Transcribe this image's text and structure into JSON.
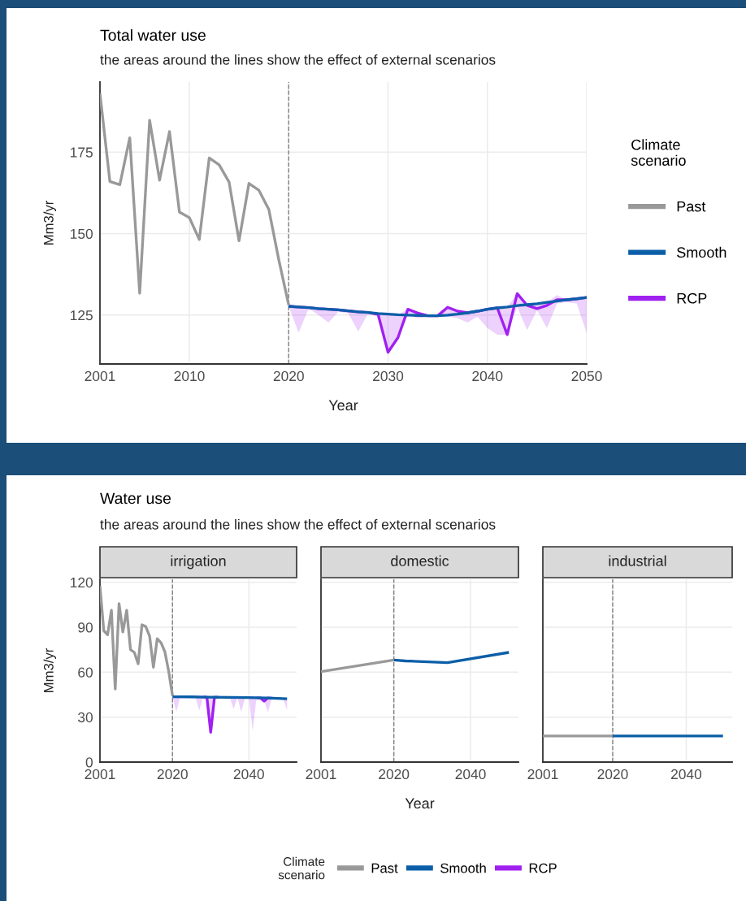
{
  "chart_data": [
    {
      "type": "line",
      "title": "Total water use",
      "subtitle": "the areas around the lines show the effect of external scenarios",
      "xlabel": "Year",
      "ylabel": "Mm3/yr",
      "legend_title": "Climate\nscenario",
      "legend": "right",
      "grid": true,
      "xlim": [
        2001,
        2050
      ],
      "xticks": [
        2001,
        2010,
        2020,
        2030,
        2040,
        2050
      ],
      "ylim": [
        110,
        196.5
      ],
      "yticks": [
        125,
        150,
        175
      ],
      "ref_lines": [
        {
          "axis": "x",
          "value": 2020,
          "color": "#808080",
          "line_style": "dashed"
        }
      ],
      "series": [
        {
          "name": "Past",
          "color": "#999999",
          "x": [
            2001,
            2002,
            2003,
            2004,
            2005,
            2006,
            2007,
            2008,
            2009,
            2010,
            2011,
            2012,
            2013,
            2014,
            2015,
            2016,
            2017,
            2018,
            2019,
            2020
          ],
          "values": [
            193.0,
            166.0,
            165.0,
            179.4,
            131.7,
            184.8,
            166.4,
            181.3,
            156.6,
            154.9,
            148.2,
            173.2,
            171.1,
            165.8,
            147.8,
            165.4,
            163.3,
            157.4,
            142.0,
            128.1
          ]
        },
        {
          "name": "Smooth",
          "color": "#0b5ea8",
          "x": [
            2020,
            2021,
            2022,
            2023,
            2024,
            2025,
            2026,
            2027,
            2028,
            2029,
            2030,
            2031,
            2032,
            2033,
            2034,
            2035,
            2036,
            2037,
            2038,
            2039,
            2040,
            2041,
            2042,
            2043,
            2044,
            2045,
            2046,
            2047,
            2048,
            2049,
            2050
          ],
          "values": [
            127.7,
            127.5,
            127.3,
            127.0,
            126.8,
            126.6,
            126.3,
            126.0,
            125.8,
            125.5,
            125.3,
            125.1,
            125.0,
            124.9,
            124.8,
            124.8,
            125.0,
            125.3,
            125.7,
            126.2,
            126.8,
            127.2,
            127.5,
            127.9,
            128.2,
            128.5,
            128.9,
            129.3,
            129.7,
            130.0,
            130.4
          ]
        },
        {
          "name": "RCP",
          "color": "#a020f0",
          "x": [
            2020,
            2021,
            2022,
            2023,
            2024,
            2025,
            2026,
            2027,
            2028,
            2029,
            2030,
            2031,
            2032,
            2033,
            2034,
            2035,
            2036,
            2037,
            2038,
            2039,
            2040,
            2041,
            2042,
            2043,
            2044,
            2045,
            2046,
            2047,
            2048,
            2049,
            2050
          ],
          "values": [
            127.7,
            127.5,
            127.3,
            127.0,
            126.8,
            126.6,
            126.3,
            126.0,
            125.8,
            125.2,
            113.6,
            118.1,
            126.8,
            125.6,
            124.8,
            124.8,
            127.4,
            126.2,
            125.7,
            126.2,
            126.8,
            127.2,
            119.0,
            131.6,
            128.0,
            127.0,
            128.0,
            129.7,
            129.7,
            130.0,
            130.4
          ],
          "lower": [
            127.7,
            119.6,
            127.0,
            125.0,
            122.7,
            126.0,
            125.5,
            120.0,
            125.5,
            125.2,
            113.6,
            118.1,
            125.0,
            124.0,
            124.5,
            124.5,
            124.5,
            124.0,
            122.7,
            124.5,
            121.0,
            119.0,
            119.0,
            127.5,
            120.4,
            126.5,
            121.0,
            128.5,
            129.0,
            128.5,
            119.4
          ],
          "upper": [
            127.7,
            127.5,
            127.3,
            127.0,
            126.8,
            126.6,
            126.3,
            126.0,
            125.8,
            125.5,
            125.3,
            125.1,
            126.8,
            125.6,
            124.8,
            124.8,
            127.4,
            126.2,
            125.7,
            126.2,
            126.8,
            127.2,
            127.5,
            131.6,
            128.2,
            128.5,
            128.9,
            131.1,
            129.7,
            130.0,
            130.4
          ]
        }
      ]
    },
    {
      "type": "line",
      "title": "irrigation",
      "annotations": [
        "Water use",
        "the areas around the lines show the effect of external scenarios"
      ],
      "ylabel": "Mm3/yr",
      "legend_title": "Climate\nscenario",
      "legend": "bottom",
      "grid": true,
      "xlim": [
        2001,
        2052.5
      ],
      "xticks": [
        2001,
        2020,
        2040
      ],
      "ylim": [
        0,
        122
      ],
      "yticks": [
        0,
        30,
        60,
        90,
        120
      ],
      "ref_lines": [
        {
          "axis": "x",
          "value": 2020,
          "color": "#808080",
          "line_style": "dashed"
        }
      ],
      "series": [
        {
          "name": "Past",
          "color": "#999999",
          "x": [
            2001,
            2002,
            2003,
            2004,
            2005,
            2006,
            2007,
            2008,
            2009,
            2010,
            2011,
            2012,
            2013,
            2014,
            2015,
            2016,
            2017,
            2018,
            2019,
            2020
          ],
          "values": [
            117.5,
            87.7,
            85.0,
            101.3,
            48.8,
            105.8,
            86.8,
            101.3,
            75.0,
            73.2,
            65.6,
            91.7,
            90.4,
            84.1,
            63.3,
            82.3,
            79.6,
            73.6,
            60.6,
            44.3
          ]
        },
        {
          "name": "Smooth",
          "color": "#0b5ea8",
          "x": [
            2020,
            2025,
            2030,
            2035,
            2040,
            2045,
            2050
          ],
          "values": [
            43.6,
            43.5,
            43.3,
            43.2,
            43.0,
            42.8,
            42.2
          ]
        },
        {
          "name": "RCP",
          "color": "#a020f0",
          "x": [
            2020,
            2021,
            2022,
            2023,
            2024,
            2025,
            2026,
            2027,
            2028,
            2029,
            2030,
            2031,
            2032,
            2033,
            2034,
            2035,
            2036,
            2037,
            2038,
            2039,
            2040,
            2041,
            2042,
            2043,
            2044,
            2045,
            2046,
            2047,
            2048,
            2049,
            2050
          ],
          "values": [
            null,
            null,
            null,
            null,
            null,
            null,
            null,
            null,
            43.4,
            43.3,
            19.9,
            43.3,
            43.3,
            null,
            null,
            null,
            null,
            null,
            null,
            null,
            null,
            null,
            42.9,
            42.8,
            40.7,
            42.8,
            42.6,
            null,
            null,
            null,
            null
          ],
          "lower": [
            43.6,
            33.5,
            43.5,
            43.5,
            43.5,
            43.5,
            43.4,
            34.4,
            43.4,
            43.3,
            19.9,
            43.3,
            43.3,
            43.2,
            43.2,
            43.2,
            35.3,
            43.1,
            33.5,
            43.0,
            43.0,
            20.8,
            42.9,
            42.8,
            40.7,
            33.5,
            42.6,
            42.5,
            42.4,
            42.3,
            34.4
          ],
          "upper": [
            43.6,
            43.6,
            43.5,
            43.5,
            43.5,
            43.5,
            43.4,
            43.4,
            43.4,
            43.3,
            43.3,
            43.3,
            43.3,
            43.2,
            43.2,
            43.2,
            43.1,
            43.1,
            43.0,
            43.0,
            43.0,
            42.9,
            42.9,
            42.8,
            42.8,
            42.8,
            42.6,
            42.5,
            42.4,
            42.3,
            42.2
          ]
        }
      ]
    },
    {
      "type": "line",
      "title": "domestic",
      "xlabel": "Year",
      "grid": true,
      "tick_labels": "x",
      "xlim": [
        2001,
        2052.5
      ],
      "xticks": [
        2001,
        2020,
        2040
      ],
      "ylim": [
        0,
        122
      ],
      "yticks": [
        0,
        30,
        60,
        90,
        120
      ],
      "ref_lines": [
        {
          "axis": "x",
          "value": 2020,
          "color": "#808080",
          "line_style": "dashed"
        }
      ],
      "series": [
        {
          "color": "#999999",
          "x": [
            2001,
            2020
          ],
          "values": [
            60.4,
            68.1
          ]
        },
        {
          "color": "#0b5ea8",
          "x": [
            2020,
            2023,
            2034,
            2050
          ],
          "values": [
            68.1,
            67.5,
            66.4,
            73.2
          ]
        }
      ]
    },
    {
      "type": "line",
      "title": "industrial",
      "grid": true,
      "tick_labels": "x",
      "xlim": [
        2001,
        2052.5
      ],
      "xticks": [
        2001,
        2020,
        2040
      ],
      "ylim": [
        0,
        122
      ],
      "yticks": [
        0,
        30,
        60,
        90,
        120
      ],
      "ref_lines": [
        {
          "axis": "x",
          "value": 2020,
          "color": "#808080",
          "line_style": "dashed"
        }
      ],
      "series": [
        {
          "color": "#999999",
          "x": [
            2001,
            2020
          ],
          "values": [
            17.4,
            17.4
          ]
        },
        {
          "color": "#0b5ea8",
          "x": [
            2020,
            2050
          ],
          "values": [
            17.4,
            17.4
          ]
        }
      ]
    }
  ]
}
